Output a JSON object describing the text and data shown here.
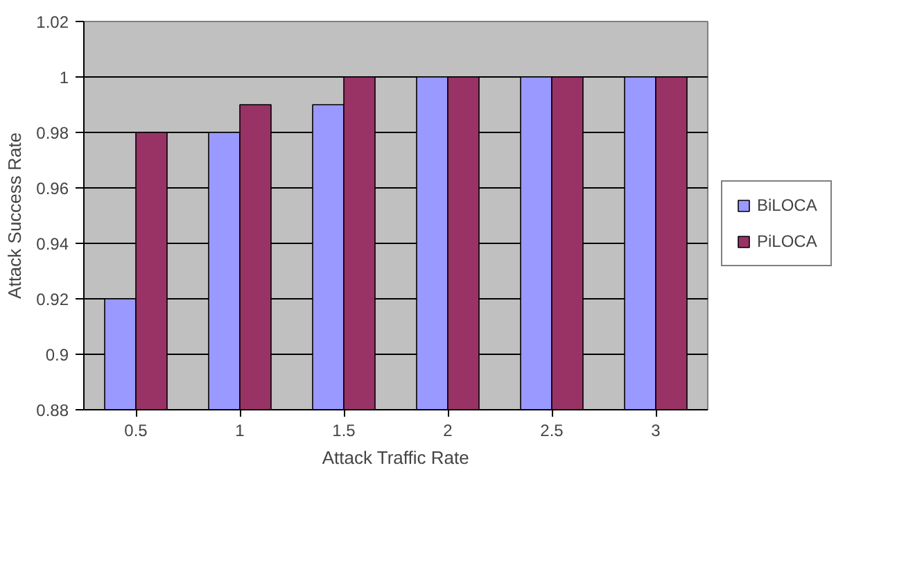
{
  "chart_data": {
    "type": "bar",
    "xlabel": "Attack Traffic Rate",
    "ylabel": "Attack Success Rate",
    "categories": [
      "0.5",
      "1",
      "1.5",
      "2",
      "2.5",
      "3"
    ],
    "series": [
      {
        "name": "BiLOCA",
        "color": "#9999ff",
        "values": [
          0.92,
          0.98,
          0.99,
          1,
          1,
          1
        ]
      },
      {
        "name": "PiLOCA",
        "color": "#993366",
        "values": [
          0.98,
          0.99,
          1,
          1,
          1,
          1
        ]
      }
    ],
    "ylim": [
      0.88,
      1.02
    ],
    "yticks": [
      0.88,
      0.9,
      0.92,
      0.94,
      0.96,
      0.98,
      1,
      1.02
    ],
    "grid": "y",
    "legend": "right"
  }
}
